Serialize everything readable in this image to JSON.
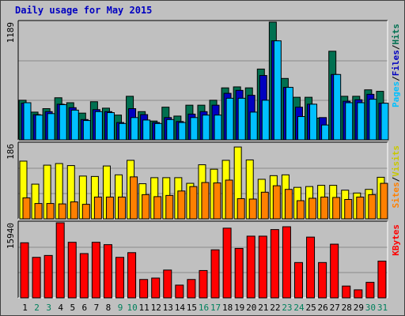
{
  "title": "Daily usage for May 2015",
  "colors": {
    "hits": "#007050",
    "files": "#0000c0",
    "pages": "#00c0ff",
    "visits": "#ffff00",
    "sites": "#ff8000",
    "kbytes": "#ff0000",
    "weekend_label": "#00805c",
    "weekday_label": "#000000"
  },
  "chart_data": [
    {
      "type": "bar",
      "title": "",
      "ymax_label": "1189",
      "ylim": [
        0,
        1189
      ],
      "legend": [
        "Pages",
        "/",
        "Files",
        "/",
        "Hits"
      ],
      "categories": [
        "1",
        "2",
        "3",
        "4",
        "5",
        "6",
        "7",
        "8",
        "9",
        "10",
        "11",
        "12",
        "13",
        "14",
        "15",
        "16",
        "17",
        "18",
        "19",
        "20",
        "21",
        "22",
        "23",
        "24",
        "25",
        "26",
        "27",
        "28",
        "29",
        "30",
        "31"
      ],
      "series": [
        {
          "name": "Hits",
          "values": [
            400,
            280,
            315,
            425,
            375,
            270,
            385,
            320,
            250,
            440,
            285,
            190,
            330,
            240,
            350,
            350,
            400,
            525,
            535,
            525,
            715,
            1189,
            620,
            430,
            430,
            220,
            895,
            440,
            440,
            505,
            490
          ]
        },
        {
          "name": "Files",
          "values": [
            370,
            255,
            285,
            360,
            325,
            205,
            305,
            285,
            175,
            315,
            255,
            175,
            225,
            185,
            260,
            285,
            350,
            470,
            500,
            450,
            650,
            1000,
            530,
            330,
            360,
            225,
            660,
            390,
            405,
            460,
            370
          ]
        },
        {
          "name": "Pages",
          "values": [
            375,
            250,
            265,
            355,
            300,
            195,
            285,
            275,
            165,
            225,
            200,
            165,
            205,
            175,
            225,
            250,
            250,
            420,
            420,
            280,
            400,
            1000,
            530,
            235,
            360,
            150,
            660,
            375,
            375,
            410,
            370
          ]
        }
      ]
    },
    {
      "type": "bar",
      "title": "",
      "ymax_label": "186",
      "ylim": [
        0,
        186
      ],
      "legend": [
        "Sites",
        "/",
        "Visits"
      ],
      "categories": [
        "1",
        "2",
        "3",
        "4",
        "5",
        "6",
        "7",
        "8",
        "9",
        "10",
        "11",
        "12",
        "13",
        "14",
        "15",
        "16",
        "17",
        "18",
        "19",
        "20",
        "21",
        "22",
        "23",
        "24",
        "25",
        "26",
        "27",
        "28",
        "29",
        "30",
        "31"
      ],
      "series": [
        {
          "name": "Visits",
          "values": [
            143,
            86,
            133,
            137,
            132,
            106,
            105,
            131,
            109,
            145,
            87,
            102,
            102,
            102,
            88,
            134,
            123,
            145,
            178,
            146,
            98,
            107,
            109,
            78,
            80,
            83,
            83,
            71,
            64,
            73,
            103
          ]
        },
        {
          "name": "Sites",
          "values": [
            52,
            38,
            38,
            37,
            42,
            36,
            54,
            54,
            54,
            104,
            60,
            55,
            58,
            69,
            80,
            90,
            89,
            96,
            50,
            49,
            66,
            82,
            73,
            45,
            51,
            54,
            53,
            48,
            54,
            60,
            88
          ]
        }
      ]
    },
    {
      "type": "bar",
      "title": "",
      "ymax_label": "15940",
      "ylim": [
        0,
        15940
      ],
      "legend": [
        "KBytes"
      ],
      "categories": [
        "1",
        "2",
        "3",
        "4",
        "5",
        "6",
        "7",
        "8",
        "9",
        "10",
        "11",
        "12",
        "13",
        "14",
        "15",
        "16",
        "17",
        "18",
        "19",
        "20",
        "21",
        "22",
        "23",
        "24",
        "25",
        "26",
        "27",
        "28",
        "29",
        "30",
        "31"
      ],
      "series": [
        {
          "name": "KBytes",
          "values": [
            11700,
            8600,
            9000,
            15940,
            11800,
            9400,
            11800,
            11300,
            8600,
            9600,
            3900,
            4200,
            5900,
            2700,
            3900,
            5800,
            10200,
            14800,
            10500,
            13100,
            13100,
            14500,
            15100,
            7500,
            12900,
            7500,
            11400,
            2500,
            1700,
            3300,
            7800
          ]
        }
      ]
    }
  ]
}
